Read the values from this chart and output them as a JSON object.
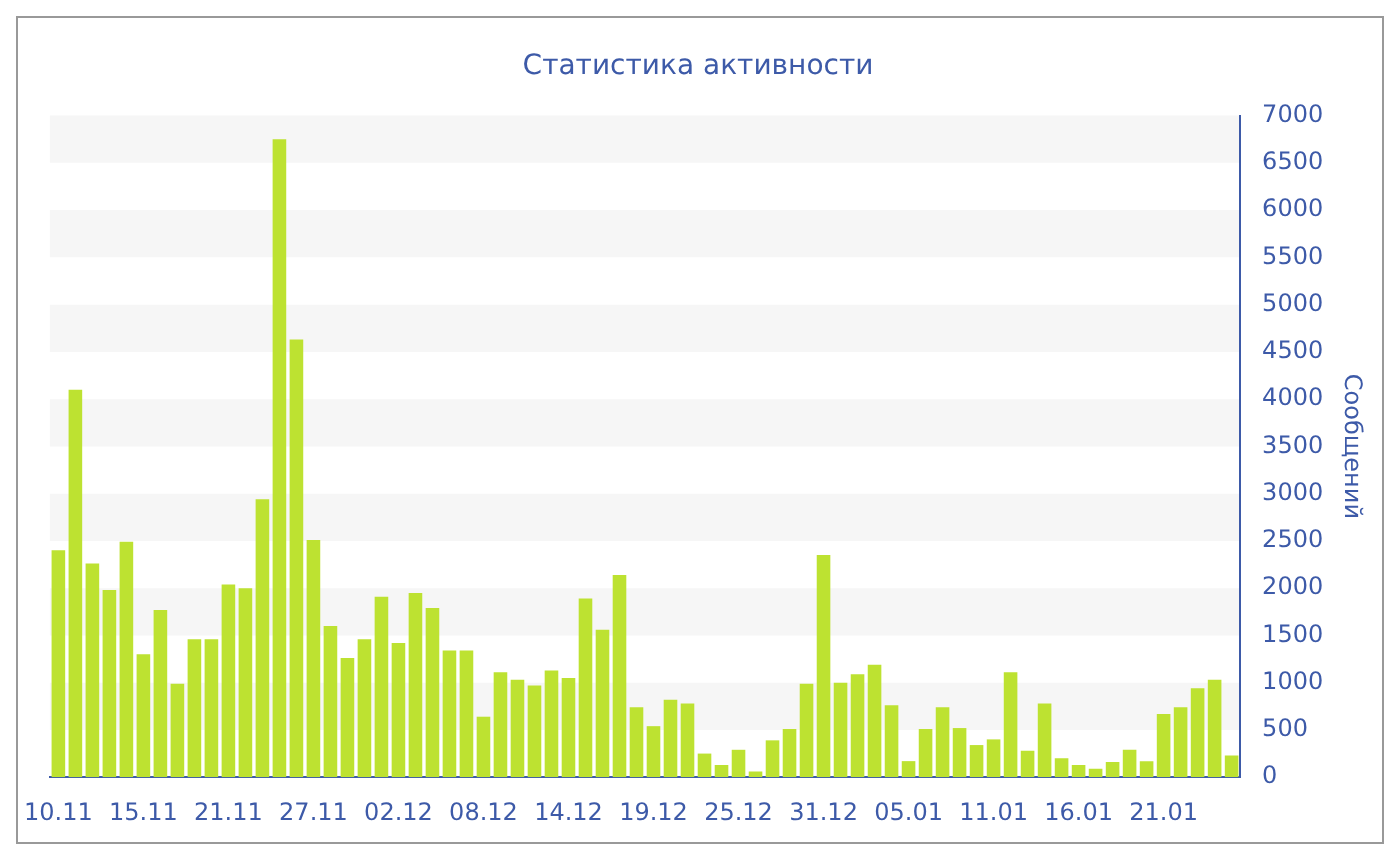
{
  "chart_data": {
    "type": "bar",
    "title": "Статистика активности",
    "ylabel": "Сообщений",
    "categories": [
      "10.11",
      null,
      null,
      null,
      null,
      "15.11",
      null,
      null,
      null,
      null,
      "21.11",
      null,
      null,
      null,
      null,
      "27.11",
      null,
      null,
      null,
      null,
      "02.12",
      null,
      null,
      null,
      null,
      "08.12",
      null,
      null,
      null,
      null,
      "14.12",
      null,
      null,
      null,
      null,
      "19.12",
      null,
      null,
      null,
      null,
      "25.12",
      null,
      null,
      null,
      null,
      "31.12",
      null,
      null,
      null,
      null,
      "05.01",
      null,
      null,
      null,
      null,
      "11.01",
      null,
      null,
      null,
      null,
      "16.01",
      null,
      null,
      null,
      null,
      "21.01",
      null,
      null,
      null,
      null
    ],
    "values": [
      2400,
      4100,
      2260,
      1980,
      2490,
      1300,
      1770,
      990,
      1460,
      1460,
      2040,
      2000,
      2940,
      6750,
      4630,
      2510,
      1600,
      1260,
      1460,
      1910,
      1420,
      1950,
      1790,
      1340,
      1340,
      640,
      1110,
      1030,
      970,
      1130,
      1050,
      1890,
      1560,
      2140,
      740,
      540,
      820,
      780,
      250,
      130,
      290,
      60,
      390,
      510,
      990,
      2350,
      1000,
      1090,
      1190,
      760,
      170,
      510,
      740,
      520,
      340,
      400,
      1110,
      280,
      780,
      200,
      130,
      90,
      160,
      290,
      170,
      670,
      740,
      940,
      1030,
      230
    ],
    "color": "#bde231",
    "ylim": [
      0,
      7000
    ],
    "yticks": [
      0,
      500,
      1000,
      1500,
      2000,
      2500,
      3000,
      3500,
      4000,
      4500,
      5000,
      5500,
      6000,
      6500,
      7000
    ],
    "bands": [
      {
        "axis": "y",
        "from": 500,
        "to": 1000,
        "color": "#f6f6f6"
      },
      {
        "axis": "y",
        "from": 1500,
        "to": 2000,
        "color": "#f6f6f6"
      },
      {
        "axis": "y",
        "from": 2500,
        "to": 3000,
        "color": "#f6f6f6"
      },
      {
        "axis": "y",
        "from": 3500,
        "to": 4000,
        "color": "#f6f6f6"
      },
      {
        "axis": "y",
        "from": 4500,
        "to": 5000,
        "color": "#f6f6f6"
      },
      {
        "axis": "y",
        "from": 5500,
        "to": 6000,
        "color": "#f6f6f6"
      },
      {
        "axis": "y",
        "from": 6500,
        "to": 7000,
        "color": "#f6f6f6"
      }
    ],
    "legend": false
  }
}
